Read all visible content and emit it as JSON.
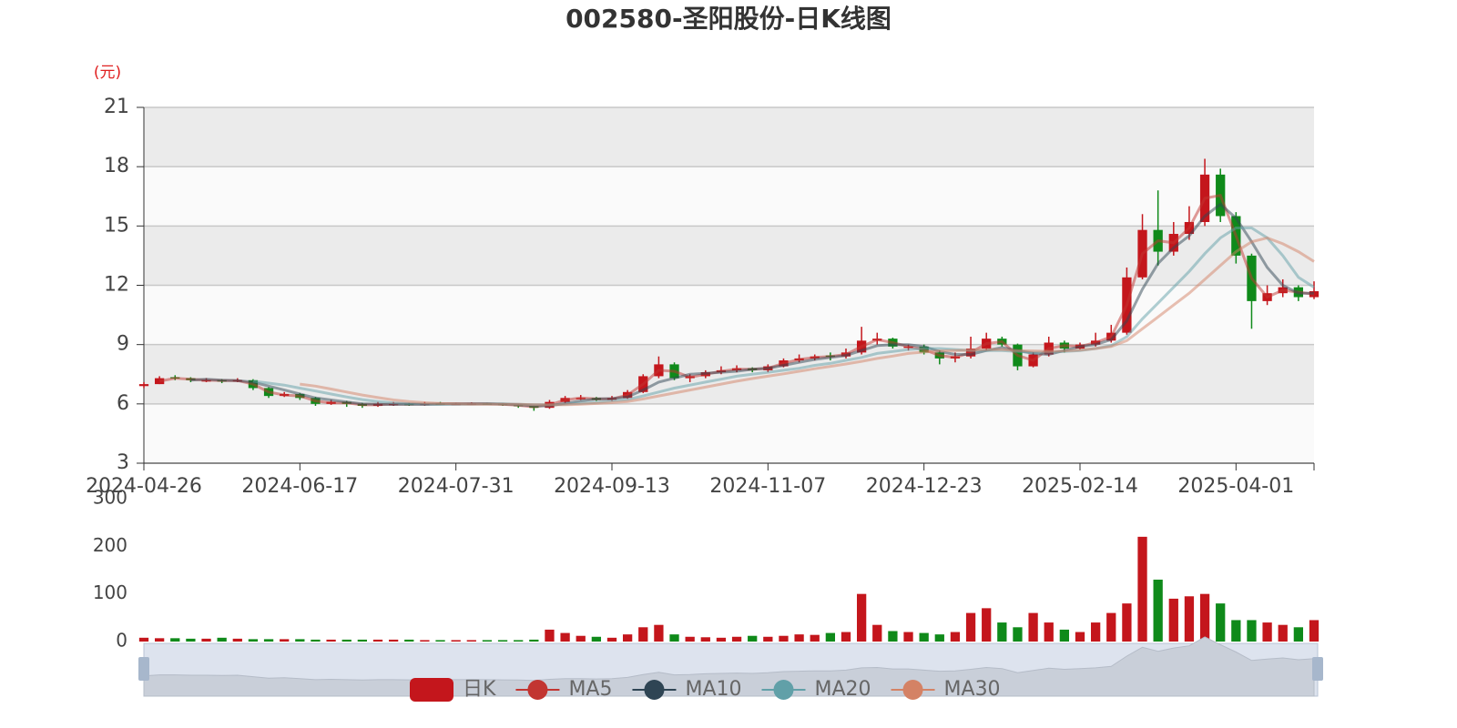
{
  "chart_data": {
    "type": "candlestick",
    "title": "002580-圣阳股份-日K线图",
    "y_unit": "(元)",
    "grid": true,
    "legend": "bottom",
    "categories": [
      "2024-04-26",
      null,
      null,
      null,
      null,
      null,
      null,
      null,
      null,
      null,
      "2024-06-17",
      null,
      null,
      null,
      null,
      null,
      null,
      null,
      null,
      null,
      "2024-07-31",
      null,
      null,
      null,
      null,
      null,
      null,
      null,
      null,
      null,
      "2024-09-13",
      null,
      null,
      null,
      null,
      null,
      null,
      null,
      null,
      null,
      "2024-11-07",
      null,
      null,
      null,
      null,
      null,
      null,
      null,
      null,
      null,
      "2024-12-23",
      null,
      null,
      null,
      null,
      null,
      null,
      null,
      null,
      null,
      "2025-02-14",
      null,
      null,
      null,
      null,
      null,
      null,
      null,
      null,
      null,
      "2025-04-01",
      null,
      null,
      null,
      null,
      null
    ],
    "ylim": [
      3,
      21
    ],
    "yticks": [
      3,
      6,
      9,
      12,
      15,
      18,
      21
    ],
    "series": [
      {
        "name": "日K",
        "type": "candlestick",
        "color": "#c4161c",
        "color_down": "#0f8a1a",
        "values": [
          [
            6.9,
            7.0,
            6.8,
            7.1
          ],
          [
            7.0,
            7.3,
            7.0,
            7.4
          ],
          [
            7.35,
            7.3,
            7.2,
            7.45
          ],
          [
            7.3,
            7.2,
            7.1,
            7.35
          ],
          [
            7.15,
            7.2,
            7.1,
            7.3
          ],
          [
            7.2,
            7.15,
            7.05,
            7.25
          ],
          [
            7.15,
            7.2,
            7.1,
            7.3
          ],
          [
            7.2,
            6.8,
            6.7,
            7.25
          ],
          [
            6.8,
            6.4,
            6.3,
            6.85
          ],
          [
            6.4,
            6.5,
            6.35,
            6.6
          ],
          [
            6.5,
            6.3,
            6.2,
            6.55
          ],
          [
            6.3,
            6.0,
            5.9,
            6.35
          ],
          [
            6.0,
            6.1,
            5.95,
            6.2
          ],
          [
            6.1,
            6.0,
            5.85,
            6.15
          ],
          [
            6.0,
            5.9,
            5.8,
            6.05
          ],
          [
            5.9,
            6.0,
            5.85,
            6.1
          ],
          [
            5.95,
            6.0,
            5.9,
            6.1
          ],
          [
            6.0,
            5.95,
            5.9,
            6.05
          ],
          [
            5.95,
            6.0,
            5.9,
            6.1
          ],
          [
            6.02,
            6.0,
            5.95,
            6.1
          ],
          [
            5.98,
            6.0,
            5.95,
            6.05
          ],
          [
            5.98,
            6.02,
            5.95,
            6.08
          ],
          [
            6.02,
            6.0,
            5.95,
            6.05
          ],
          [
            6.0,
            5.95,
            5.9,
            6.02
          ],
          [
            5.95,
            5.9,
            5.8,
            5.98
          ],
          [
            5.9,
            5.8,
            5.65,
            5.92
          ],
          [
            5.8,
            6.1,
            5.75,
            6.2
          ],
          [
            6.1,
            6.3,
            6.05,
            6.4
          ],
          [
            6.25,
            6.3,
            6.2,
            6.45
          ],
          [
            6.3,
            6.2,
            6.15,
            6.35
          ],
          [
            6.2,
            6.3,
            6.15,
            6.4
          ],
          [
            6.3,
            6.6,
            6.25,
            6.7
          ],
          [
            6.6,
            7.4,
            6.55,
            7.5
          ],
          [
            7.4,
            8.0,
            7.3,
            8.4
          ],
          [
            8.0,
            7.3,
            7.2,
            8.1
          ],
          [
            7.3,
            7.4,
            7.1,
            7.5
          ],
          [
            7.4,
            7.6,
            7.3,
            7.7
          ],
          [
            7.6,
            7.7,
            7.5,
            7.9
          ],
          [
            7.7,
            7.8,
            7.6,
            7.95
          ],
          [
            7.8,
            7.7,
            7.6,
            7.85
          ],
          [
            7.7,
            7.9,
            7.6,
            8.0
          ],
          [
            7.9,
            8.2,
            7.85,
            8.3
          ],
          [
            8.2,
            8.3,
            8.1,
            8.5
          ],
          [
            8.3,
            8.4,
            8.2,
            8.5
          ],
          [
            8.45,
            8.4,
            8.2,
            8.6
          ],
          [
            8.4,
            8.6,
            8.3,
            8.8
          ],
          [
            8.6,
            9.2,
            8.5,
            9.9
          ],
          [
            9.2,
            9.3,
            9.0,
            9.6
          ],
          [
            9.3,
            8.9,
            8.8,
            9.35
          ],
          [
            8.85,
            8.9,
            8.7,
            9.0
          ],
          [
            8.9,
            8.6,
            8.5,
            9.0
          ],
          [
            8.6,
            8.3,
            8.0,
            8.7
          ],
          [
            8.3,
            8.4,
            8.1,
            8.6
          ],
          [
            8.4,
            8.8,
            8.3,
            9.4
          ],
          [
            8.8,
            9.3,
            8.7,
            9.6
          ],
          [
            9.3,
            9.0,
            8.9,
            9.4
          ],
          [
            9.0,
            7.9,
            7.7,
            9.05
          ],
          [
            7.9,
            8.5,
            7.85,
            8.6
          ],
          [
            8.5,
            9.1,
            8.4,
            9.4
          ],
          [
            9.1,
            8.8,
            8.6,
            9.2
          ],
          [
            8.8,
            9.0,
            8.75,
            9.1
          ],
          [
            9.0,
            9.2,
            8.9,
            9.6
          ],
          [
            9.2,
            9.6,
            9.1,
            10.0
          ],
          [
            9.6,
            12.4,
            9.5,
            12.9
          ],
          [
            12.4,
            14.8,
            12.3,
            15.6
          ],
          [
            14.8,
            13.7,
            13.0,
            16.8
          ],
          [
            13.7,
            14.6,
            13.5,
            15.2
          ],
          [
            14.6,
            15.2,
            14.3,
            16.0
          ],
          [
            15.2,
            17.6,
            15.0,
            18.4
          ],
          [
            17.6,
            15.5,
            15.2,
            17.9
          ],
          [
            15.5,
            13.5,
            13.1,
            15.7
          ],
          [
            13.5,
            11.2,
            9.8,
            13.6
          ],
          [
            11.2,
            11.6,
            11.0,
            12.0
          ],
          [
            11.6,
            11.9,
            11.4,
            12.3
          ],
          [
            11.9,
            11.4,
            11.2,
            12.0
          ],
          [
            11.4,
            11.7,
            11.3,
            12.2
          ]
        ]
      },
      {
        "name": "MA5",
        "type": "line",
        "color": "#c23531",
        "values": [
          null,
          7.15,
          7.3,
          7.25,
          7.2,
          7.18,
          7.18,
          7.0,
          6.6,
          6.45,
          6.4,
          6.15,
          6.05,
          6.05,
          5.95,
          5.95,
          6.0,
          5.98,
          5.98,
          6.0,
          6.0,
          6.01,
          6.01,
          5.98,
          5.93,
          5.85,
          5.95,
          6.2,
          6.3,
          6.25,
          6.25,
          6.45,
          7.0,
          7.7,
          7.65,
          7.35,
          7.5,
          7.65,
          7.75,
          7.75,
          7.8,
          8.05,
          8.25,
          8.35,
          8.4,
          8.5,
          8.9,
          9.25,
          9.1,
          8.9,
          8.75,
          8.45,
          8.35,
          8.6,
          9.05,
          9.15,
          8.45,
          8.2,
          8.8,
          8.95,
          8.9,
          9.1,
          9.4,
          11.0,
          13.6,
          14.25,
          14.15,
          14.9,
          16.4,
          16.55,
          14.5,
          12.35,
          11.4,
          11.75,
          11.65,
          11.55
        ]
      },
      {
        "name": "MA10",
        "type": "line",
        "color": "#2f4554",
        "values": [
          null,
          null,
          null,
          7.2,
          7.25,
          7.2,
          7.18,
          7.1,
          6.9,
          6.7,
          6.5,
          6.3,
          6.2,
          6.1,
          6.0,
          5.98,
          5.97,
          5.98,
          5.98,
          5.99,
          6.0,
          6.0,
          6.0,
          5.99,
          5.96,
          5.9,
          5.9,
          6.03,
          6.15,
          6.25,
          6.27,
          6.35,
          6.7,
          7.1,
          7.3,
          7.5,
          7.55,
          7.6,
          7.65,
          7.75,
          7.8,
          7.95,
          8.1,
          8.25,
          8.35,
          8.45,
          8.7,
          8.95,
          9.0,
          9.0,
          8.9,
          8.65,
          8.5,
          8.5,
          8.7,
          8.85,
          8.7,
          8.55,
          8.5,
          8.7,
          8.9,
          9.0,
          9.25,
          10.2,
          11.8,
          13.1,
          13.9,
          14.5,
          15.5,
          16.1,
          15.4,
          14.2,
          12.9,
          12.0,
          11.6,
          11.6
        ]
      },
      {
        "name": "MA20",
        "type": "line",
        "color": "#61a0a8",
        "values": [
          null,
          null,
          null,
          null,
          null,
          null,
          null,
          7.15,
          7.05,
          6.95,
          6.8,
          6.65,
          6.5,
          6.35,
          6.22,
          6.12,
          6.05,
          6.0,
          5.98,
          5.98,
          5.98,
          5.99,
          6.0,
          6.0,
          5.98,
          5.95,
          5.95,
          5.98,
          6.03,
          6.08,
          6.15,
          6.22,
          6.4,
          6.6,
          6.8,
          6.95,
          7.1,
          7.25,
          7.4,
          7.5,
          7.6,
          7.7,
          7.8,
          7.95,
          8.05,
          8.2,
          8.35,
          8.55,
          8.65,
          8.75,
          8.8,
          8.8,
          8.75,
          8.7,
          8.7,
          8.7,
          8.65,
          8.6,
          8.62,
          8.65,
          8.7,
          8.8,
          8.95,
          9.4,
          10.3,
          11.1,
          11.9,
          12.7,
          13.6,
          14.4,
          14.9,
          14.9,
          14.4,
          13.5,
          12.4,
          11.9
        ]
      },
      {
        "name": "MA30",
        "type": "line",
        "color": "#d48265",
        "values": [
          null,
          null,
          null,
          null,
          null,
          null,
          null,
          null,
          null,
          null,
          7.0,
          6.9,
          6.75,
          6.6,
          6.45,
          6.32,
          6.2,
          6.12,
          6.06,
          6.02,
          6.0,
          5.98,
          5.98,
          5.98,
          5.98,
          5.96,
          5.95,
          5.96,
          5.98,
          6.02,
          6.06,
          6.12,
          6.25,
          6.4,
          6.55,
          6.7,
          6.85,
          7.0,
          7.15,
          7.28,
          7.4,
          7.52,
          7.65,
          7.78,
          7.9,
          8.02,
          8.15,
          8.3,
          8.42,
          8.55,
          8.62,
          8.68,
          8.7,
          8.72,
          8.75,
          8.75,
          8.7,
          8.68,
          8.66,
          8.68,
          8.72,
          8.8,
          8.9,
          9.2,
          9.8,
          10.4,
          11.0,
          11.6,
          12.3,
          13.0,
          13.7,
          14.2,
          14.4,
          14.1,
          13.7,
          13.2
        ]
      }
    ],
    "volume": {
      "ylim": [
        0,
        300
      ],
      "yticks": [
        0,
        100,
        200,
        300
      ],
      "values": [
        8,
        7,
        7,
        6,
        6,
        8,
        6,
        5,
        5,
        5,
        5,
        4,
        4,
        4,
        4,
        4,
        4,
        4,
        3,
        3,
        3,
        3,
        3,
        3,
        3,
        4,
        25,
        18,
        12,
        10,
        8,
        15,
        30,
        35,
        15,
        10,
        9,
        8,
        10,
        12,
        10,
        12,
        15,
        14,
        18,
        20,
        100,
        35,
        22,
        20,
        18,
        15,
        20,
        60,
        70,
        40,
        30,
        60,
        40,
        25,
        20,
        40,
        60,
        80,
        220,
        130,
        90,
        95,
        100,
        80,
        45,
        45,
        40,
        35,
        30,
        45
      ]
    }
  }
}
